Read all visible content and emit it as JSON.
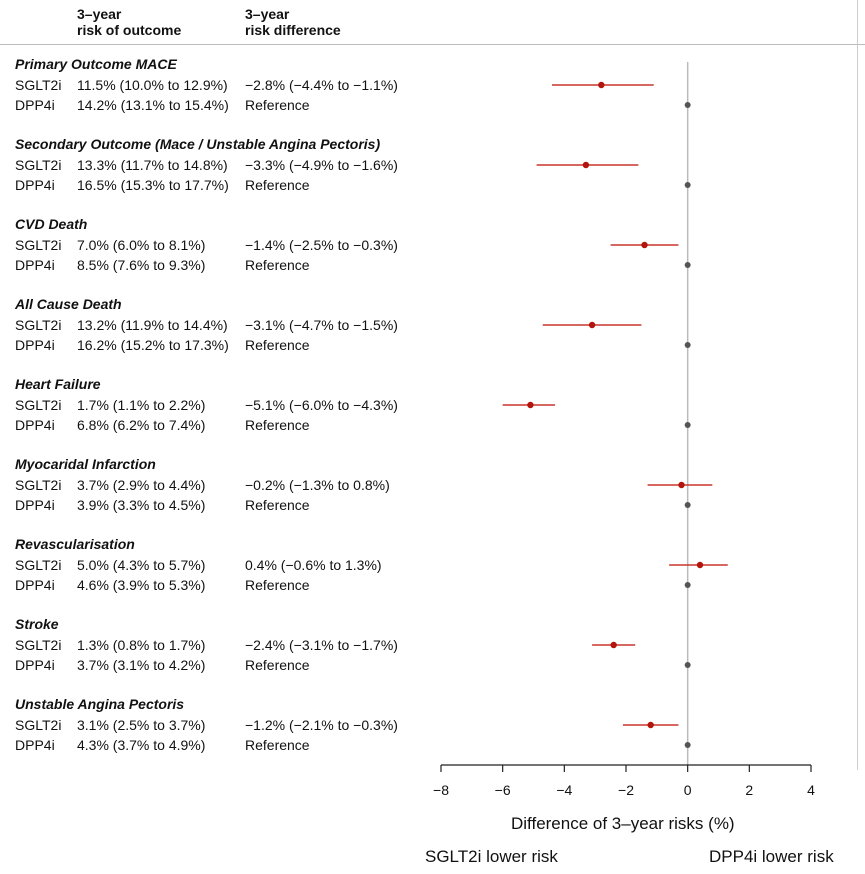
{
  "chart_data": {
    "type": "forest",
    "column_headers": {
      "risk": "3–year\nrisk of outcome",
      "diff": "3–year\nrisk difference",
      "risk_line1": "3–year",
      "risk_line2": "risk of outcome",
      "diff_line1": "3–year",
      "diff_line2": "risk difference"
    },
    "xlabel": "Difference of 3–year risks (%)",
    "left_annotation": "SGLT2i lower risk",
    "right_annotation": "DPP4i lower risk",
    "xlim": [
      -8,
      4
    ],
    "xticks": [
      -8,
      -6,
      -4,
      -2,
      0,
      2,
      4
    ],
    "xtick_labels": [
      "−8",
      "−6",
      "−4",
      "−2",
      "0",
      "2",
      "4"
    ],
    "colors": {
      "interval": "#c8372d",
      "point": "#b3140c",
      "reference": "#555555",
      "zero_line": "#bbbbbb"
    },
    "groups": [
      {
        "title": "Primary Outcome MACE",
        "rows": [
          {
            "drug": "SGLT2i",
            "risk": "11.5% (10.0% to 12.9%)",
            "diff_text": "−2.8% (−4.4% to −1.1%)",
            "est": -2.8,
            "lo": -4.4,
            "hi": -1.1
          },
          {
            "drug": "DPP4i",
            "risk": "14.2% (13.1% to 15.4%)",
            "diff_text": "Reference",
            "est": 0
          }
        ]
      },
      {
        "title": "Secondary Outcome (Mace / Unstable Angina Pectoris)",
        "rows": [
          {
            "drug": "SGLT2i",
            "risk": "13.3% (11.7% to 14.8%)",
            "diff_text": "−3.3% (−4.9% to −1.6%)",
            "est": -3.3,
            "lo": -4.9,
            "hi": -1.6
          },
          {
            "drug": "DPP4i",
            "risk": "16.5% (15.3% to 17.7%)",
            "diff_text": "Reference",
            "est": 0
          }
        ]
      },
      {
        "title": "CVD Death",
        "rows": [
          {
            "drug": "SGLT2i",
            "risk": "7.0% (6.0% to 8.1%)",
            "diff_text": "−1.4% (−2.5% to −0.3%)",
            "est": -1.4,
            "lo": -2.5,
            "hi": -0.3
          },
          {
            "drug": "DPP4i",
            "risk": "8.5% (7.6% to 9.3%)",
            "diff_text": "Reference",
            "est": 0
          }
        ]
      },
      {
        "title": "All Cause Death",
        "rows": [
          {
            "drug": "SGLT2i",
            "risk": "13.2% (11.9% to 14.4%)",
            "diff_text": "−3.1% (−4.7% to −1.5%)",
            "est": -3.1,
            "lo": -4.7,
            "hi": -1.5
          },
          {
            "drug": "DPP4i",
            "risk": "16.2% (15.2% to 17.3%)",
            "diff_text": "Reference",
            "est": 0
          }
        ]
      },
      {
        "title": "Heart Failure",
        "rows": [
          {
            "drug": "SGLT2i",
            "risk": "1.7% (1.1% to 2.2%)",
            "diff_text": "−5.1% (−6.0% to −4.3%)",
            "est": -5.1,
            "lo": -6.0,
            "hi": -4.3
          },
          {
            "drug": "DPP4i",
            "risk": "6.8% (6.2% to 7.4%)",
            "diff_text": "Reference",
            "est": 0
          }
        ]
      },
      {
        "title": "Myocaridal Infarction",
        "rows": [
          {
            "drug": "SGLT2i",
            "risk": "3.7% (2.9% to 4.4%)",
            "diff_text": "−0.2% (−1.3% to 0.8%)",
            "est": -0.2,
            "lo": -1.3,
            "hi": 0.8
          },
          {
            "drug": "DPP4i",
            "risk": "3.9% (3.3% to 4.5%)",
            "diff_text": "Reference",
            "est": 0
          }
        ]
      },
      {
        "title": "Revascularisation",
        "rows": [
          {
            "drug": "SGLT2i",
            "risk": "5.0% (4.3% to 5.7%)",
            "diff_text": "0.4% (−0.6% to 1.3%)",
            "est": 0.4,
            "lo": -0.6,
            "hi": 1.3
          },
          {
            "drug": "DPP4i",
            "risk": "4.6% (3.9% to 5.3%)",
            "diff_text": "Reference",
            "est": 0
          }
        ]
      },
      {
        "title": "Stroke",
        "rows": [
          {
            "drug": "SGLT2i",
            "risk": "1.3% (0.8% to 1.7%)",
            "diff_text": "−2.4% (−3.1% to −1.7%)",
            "est": -2.4,
            "lo": -3.1,
            "hi": -1.7
          },
          {
            "drug": "DPP4i",
            "risk": "3.7% (3.1% to 4.2%)",
            "diff_text": "Reference",
            "est": 0
          }
        ]
      },
      {
        "title": "Unstable Angina Pectoris",
        "rows": [
          {
            "drug": "SGLT2i",
            "risk": "3.1% (2.5% to 3.7%)",
            "diff_text": "−1.2% (−2.1% to −0.3%)",
            "est": -1.2,
            "lo": -2.1,
            "hi": -0.3
          },
          {
            "drug": "DPP4i",
            "risk": "4.3% (3.7% to 4.9%)",
            "diff_text": "Reference",
            "est": 0
          }
        ]
      }
    ]
  }
}
